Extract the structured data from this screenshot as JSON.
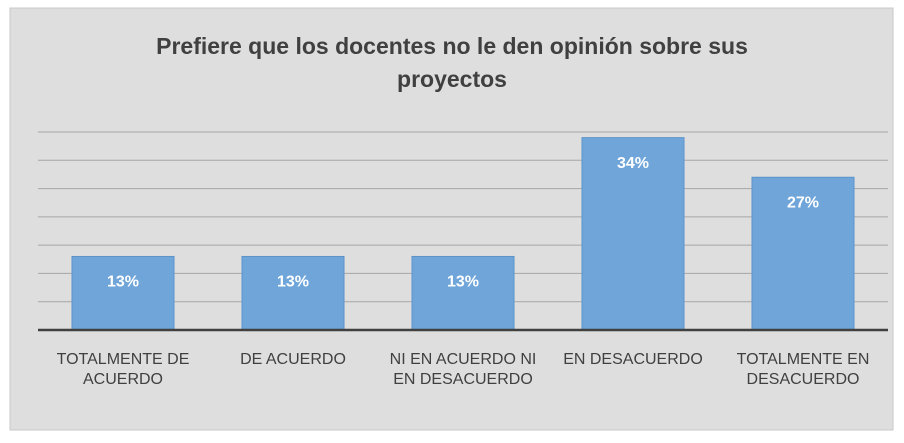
{
  "chart_data": {
    "type": "bar",
    "title": "Prefiere que los docentes no le den opinión sobre sus proyectos",
    "categories": [
      "TOTALMENTE DE ACUERDO",
      "DE ACUERDO",
      "NI EN ACUERDO NI EN DESACUERDO",
      "EN DESACUERDO",
      "TOTALMENTE EN DESACUERDO"
    ],
    "values": [
      13,
      13,
      13,
      34,
      27
    ],
    "value_labels": [
      "13%",
      "13%",
      "13%",
      "34%",
      "27%"
    ],
    "color": "#6fa5d9",
    "ylim": [
      0,
      35
    ],
    "yticks": [
      0,
      5,
      10,
      15,
      20,
      25,
      30,
      35
    ],
    "grid": true
  }
}
